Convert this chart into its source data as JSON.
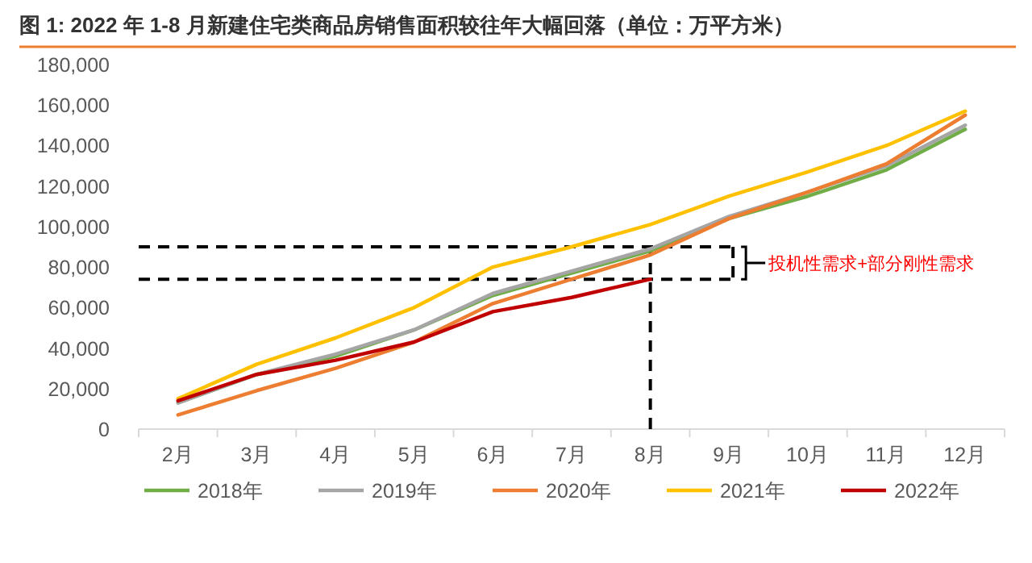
{
  "chart_data": {
    "type": "line",
    "title": "图 1:  2022 年 1-8 月新建住宅类商品房销售面积较往年大幅回落（单位：万平方米）",
    "categories": [
      "2月",
      "3月",
      "4月",
      "5月",
      "6月",
      "7月",
      "8月",
      "9月",
      "10月",
      "11月",
      "12月"
    ],
    "series": [
      {
        "name": "2018年",
        "color": "#70ad47",
        "values": [
          13000,
          27000,
          36000,
          49000,
          66000,
          77000,
          88000,
          104000,
          115000,
          128000,
          148000
        ]
      },
      {
        "name": "2019年",
        "color": "#a5a5a5",
        "values": [
          13000,
          27000,
          37000,
          49000,
          67000,
          78000,
          89000,
          105000,
          117000,
          130000,
          150000
        ]
      },
      {
        "name": "2020年",
        "color": "#ed7d31",
        "values": [
          7000,
          19000,
          30000,
          43000,
          62000,
          74000,
          86000,
          104000,
          117000,
          131000,
          155000
        ]
      },
      {
        "name": "2021年",
        "color": "#ffc000",
        "values": [
          15000,
          32000,
          45000,
          60000,
          80000,
          90000,
          101000,
          115000,
          127000,
          140000,
          157000
        ]
      },
      {
        "name": "2022年",
        "color": "#c00000",
        "values": [
          14000,
          27000,
          34000,
          43000,
          58000,
          65000,
          74000,
          null,
          null,
          null,
          null
        ]
      }
    ],
    "ylim": [
      0,
      180000
    ],
    "yticks": [
      {
        "value": 0,
        "label": "0"
      },
      {
        "value": 20000,
        "label": "20,000"
      },
      {
        "value": 40000,
        "label": "40,000"
      },
      {
        "value": 60000,
        "label": "60,000"
      },
      {
        "value": 80000,
        "label": "80,000"
      },
      {
        "value": 100000,
        "label": "100,000"
      },
      {
        "value": 120000,
        "label": "120,000"
      },
      {
        "value": 140000,
        "label": "140,000"
      },
      {
        "value": 160000,
        "label": "160,000"
      },
      {
        "value": 180000,
        "label": "180,000"
      }
    ],
    "ref_lines": [
      {
        "axis": "x",
        "value": "8月",
        "color": "#000000",
        "line_style": "dashed"
      },
      {
        "axis": "y",
        "value": 90000,
        "color": "#000000",
        "line_style": "dashed"
      },
      {
        "axis": "y",
        "value": 74000,
        "color": "#000000",
        "line_style": "dashed"
      }
    ],
    "annotations": [
      "投机性需求+部分刚性需求"
    ],
    "grid": false,
    "legend": "bottom"
  }
}
